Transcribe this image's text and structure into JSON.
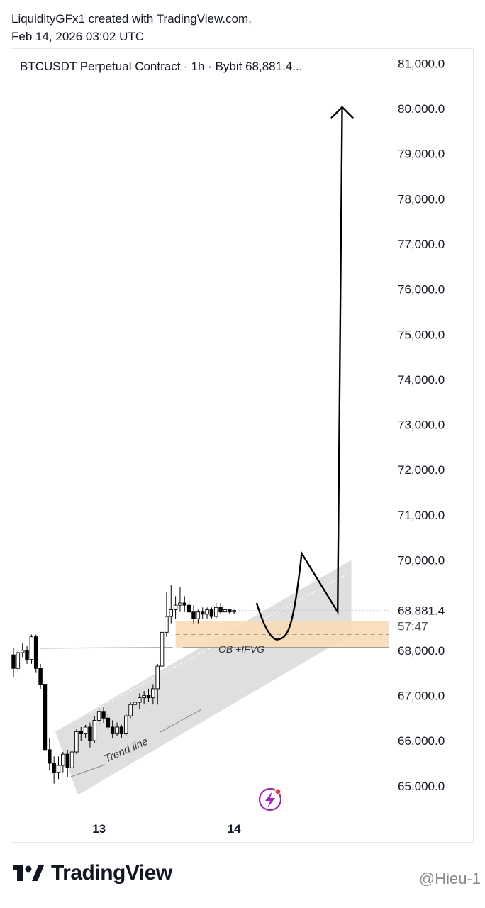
{
  "header": {
    "line1": "LiquidityGFx1 created with TradingView.com,",
    "line2": "Feb 14, 2026 03:02 UTC"
  },
  "symbol_line": "BTCUSDT Perpetual Contract · 1h · Bybit  68,881.4...",
  "footer": {
    "brand": "TradingView",
    "handle": "@Hieu-1"
  },
  "colors": {
    "candle_up_fill": "#ffffff",
    "candle_down_fill": "#000000",
    "candle_stroke": "#000000",
    "zone_fill": "#f9dcb8",
    "channel_fill": "#d9d9d9",
    "countdown_color": "#555555",
    "lightning_icon": "#9c27b0"
  },
  "chart_data": {
    "type": "candlestick",
    "y_ticks": [
      81000,
      80000,
      79000,
      78000,
      77000,
      76000,
      75000,
      74000,
      73000,
      72000,
      71000,
      70000,
      68000,
      67000,
      66000,
      65000
    ],
    "y_tick_labels": [
      "81,000.0",
      "80,000.0",
      "79,000.0",
      "78,000.0",
      "77,000.0",
      "76,000.0",
      "75,000.0",
      "74,000.0",
      "73,000.0",
      "72,000.0",
      "71,000.0",
      "70,000.0",
      "68,000.0",
      "67,000.0",
      "66,000.0",
      "65,000.0"
    ],
    "ylim": [
      64300,
      81400
    ],
    "x_labels": [
      {
        "label": "13",
        "bar": 19
      },
      {
        "label": "14",
        "bar": 49
      }
    ],
    "last_price": 68881.4,
    "last_price_label": "68,881.4",
    "countdown": "57:47",
    "zone": {
      "label": "OB +IFVG",
      "top": 68650,
      "bottom": 68050,
      "mid": 68350,
      "start_bar": 36
    },
    "trend_label": "Trend line",
    "horizontal_line": {
      "price": 68000,
      "start_bar": 6
    },
    "candles": [
      {
        "o": 67900,
        "h": 68050,
        "l": 67400,
        "c": 67600
      },
      {
        "o": 67600,
        "h": 68000,
        "l": 67500,
        "c": 67950
      },
      {
        "o": 67950,
        "h": 68150,
        "l": 67850,
        "c": 68000
      },
      {
        "o": 68000,
        "h": 68100,
        "l": 67700,
        "c": 67800
      },
      {
        "o": 67800,
        "h": 68350,
        "l": 67700,
        "c": 68300
      },
      {
        "o": 68300,
        "h": 68350,
        "l": 67500,
        "c": 67600
      },
      {
        "o": 67600,
        "h": 67700,
        "l": 67150,
        "c": 67250
      },
      {
        "o": 67250,
        "h": 67300,
        "l": 65700,
        "c": 65800
      },
      {
        "o": 65800,
        "h": 66050,
        "l": 65350,
        "c": 65500
      },
      {
        "o": 65500,
        "h": 65650,
        "l": 65050,
        "c": 65300
      },
      {
        "o": 65300,
        "h": 65650,
        "l": 65150,
        "c": 65450
      },
      {
        "o": 65450,
        "h": 65750,
        "l": 65300,
        "c": 65700
      },
      {
        "o": 65700,
        "h": 65800,
        "l": 65200,
        "c": 65400
      },
      {
        "o": 65400,
        "h": 65800,
        "l": 65300,
        "c": 65750
      },
      {
        "o": 65750,
        "h": 66250,
        "l": 65700,
        "c": 66200
      },
      {
        "o": 66200,
        "h": 66300,
        "l": 66000,
        "c": 66150
      },
      {
        "o": 66150,
        "h": 66350,
        "l": 66050,
        "c": 66300
      },
      {
        "o": 66300,
        "h": 66400,
        "l": 65850,
        "c": 66000
      },
      {
        "o": 66000,
        "h": 66550,
        "l": 65950,
        "c": 66450
      },
      {
        "o": 66450,
        "h": 66750,
        "l": 66350,
        "c": 66650
      },
      {
        "o": 66650,
        "h": 66750,
        "l": 66400,
        "c": 66500
      },
      {
        "o": 66500,
        "h": 66600,
        "l": 66250,
        "c": 66300
      },
      {
        "o": 66300,
        "h": 66450,
        "l": 66050,
        "c": 66150
      },
      {
        "o": 66150,
        "h": 66400,
        "l": 66100,
        "c": 66300
      },
      {
        "o": 66300,
        "h": 66350,
        "l": 66050,
        "c": 66150
      },
      {
        "o": 66150,
        "h": 66600,
        "l": 66100,
        "c": 66550
      },
      {
        "o": 66550,
        "h": 66850,
        "l": 66500,
        "c": 66800
      },
      {
        "o": 66800,
        "h": 66950,
        "l": 66700,
        "c": 66850
      },
      {
        "o": 66850,
        "h": 67050,
        "l": 66700,
        "c": 66950
      },
      {
        "o": 66950,
        "h": 67100,
        "l": 66800,
        "c": 67000
      },
      {
        "o": 67000,
        "h": 67150,
        "l": 66850,
        "c": 66950
      },
      {
        "o": 66950,
        "h": 67250,
        "l": 66800,
        "c": 67150
      },
      {
        "o": 67150,
        "h": 67700,
        "l": 66800,
        "c": 67650
      },
      {
        "o": 67650,
        "h": 68450,
        "l": 67600,
        "c": 68400
      },
      {
        "o": 68400,
        "h": 69300,
        "l": 68300,
        "c": 68750
      },
      {
        "o": 68750,
        "h": 69450,
        "l": 68600,
        "c": 68900
      },
      {
        "o": 68900,
        "h": 69200,
        "l": 68700,
        "c": 69000
      },
      {
        "o": 69000,
        "h": 69400,
        "l": 68850,
        "c": 69050
      },
      {
        "o": 69050,
        "h": 69200,
        "l": 68850,
        "c": 69000
      },
      {
        "o": 69000,
        "h": 69100,
        "l": 68800,
        "c": 68850
      },
      {
        "o": 68850,
        "h": 69000,
        "l": 68600,
        "c": 68700
      },
      {
        "o": 68700,
        "h": 68900,
        "l": 68600,
        "c": 68850
      },
      {
        "o": 68850,
        "h": 68950,
        "l": 68700,
        "c": 68800
      },
      {
        "o": 68800,
        "h": 68950,
        "l": 68700,
        "c": 68900
      },
      {
        "o": 68900,
        "h": 68950,
        "l": 68700,
        "c": 68750
      },
      {
        "o": 68750,
        "h": 69050,
        "l": 68700,
        "c": 68950
      },
      {
        "o": 68950,
        "h": 69050,
        "l": 68800,
        "c": 68850
      },
      {
        "o": 68850,
        "h": 68950,
        "l": 68750,
        "c": 68900
      },
      {
        "o": 68900,
        "h": 68900,
        "l": 68800,
        "c": 68850
      },
      {
        "o": 68850,
        "h": 68900,
        "l": 68800,
        "c": 68881.4
      }
    ],
    "projection_path": [
      {
        "bar": 54,
        "price": 69050
      },
      {
        "bar": 59,
        "price": 68250
      },
      {
        "bar": 61,
        "price": 68600
      },
      {
        "bar": 64,
        "price": 70150
      },
      {
        "bar": 72,
        "price": 68850
      },
      {
        "bar": 73,
        "price": 80000
      }
    ],
    "channel": {
      "top_start": {
        "bar": 3,
        "price": 66200
      },
      "top_end": {
        "bar": 76,
        "price": 70000
      },
      "bottom_start": {
        "bar": 8,
        "price": 64800
      },
      "bottom_end": {
        "bar": 76,
        "price": 68350
      }
    }
  }
}
